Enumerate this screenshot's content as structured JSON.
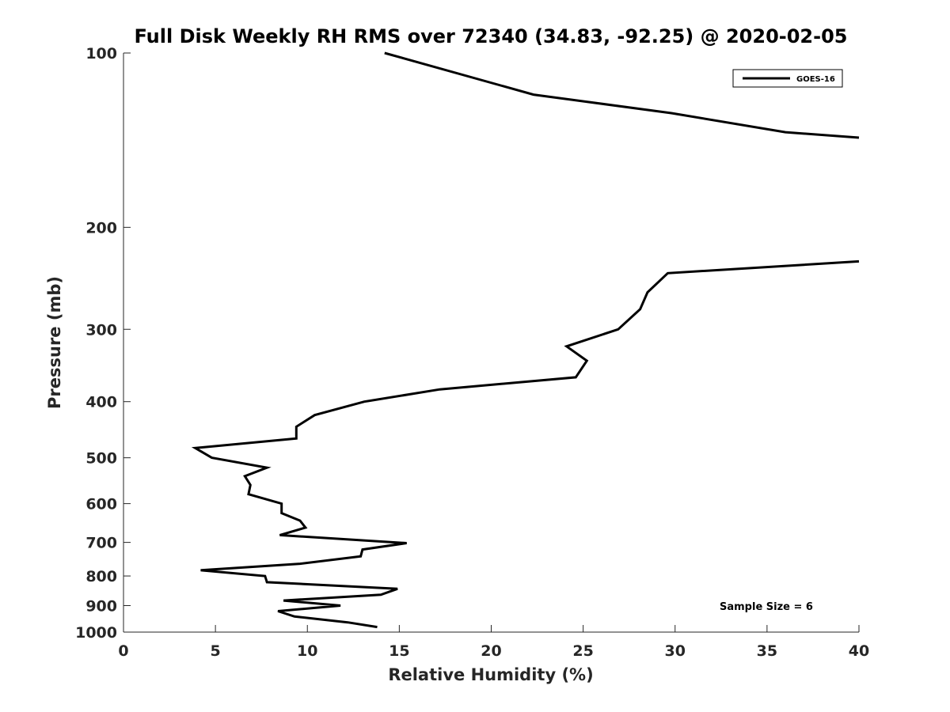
{
  "chart_data": {
    "type": "line",
    "title": "Full Disk Weekly RH RMS over 72340 (34.83, -92.25) @ 2020-02-05",
    "xlabel": "Relative Humidity (%)",
    "ylabel": "Pressure (mb)",
    "xlim": [
      0,
      40
    ],
    "ylim": [
      100,
      1000
    ],
    "yscale": "log",
    "yreversed": true,
    "grid": false,
    "legend_position": "top-right",
    "xticks": [
      "0",
      "5",
      "10",
      "15",
      "20",
      "25",
      "30",
      "35",
      "40"
    ],
    "yticks": [
      "100",
      "200",
      "300",
      "400",
      "500",
      "600",
      "700",
      "800",
      "900",
      "1000"
    ],
    "annotation": "Sample Size = 6",
    "line_color": "#000000",
    "series": [
      {
        "name": "GOES-16",
        "segments": [
          [
            {
              "x": 14.2,
              "y": 100
            },
            {
              "x": 22.3,
              "y": 118
            },
            {
              "x": 29.8,
              "y": 127
            },
            {
              "x": 36.0,
              "y": 137
            },
            {
              "x": 40.0,
              "y": 140
            }
          ],
          [
            {
              "x": 40.0,
              "y": 229
            },
            {
              "x": 29.6,
              "y": 240
            },
            {
              "x": 28.5,
              "y": 259
            },
            {
              "x": 28.1,
              "y": 277
            },
            {
              "x": 26.9,
              "y": 300
            },
            {
              "x": 24.1,
              "y": 321
            },
            {
              "x": 25.2,
              "y": 340
            },
            {
              "x": 24.6,
              "y": 363
            },
            {
              "x": 17.2,
              "y": 381
            },
            {
              "x": 13.1,
              "y": 400
            },
            {
              "x": 10.4,
              "y": 422
            },
            {
              "x": 9.4,
              "y": 442
            },
            {
              "x": 9.4,
              "y": 463
            },
            {
              "x": 3.9,
              "y": 481
            },
            {
              "x": 4.8,
              "y": 500
            },
            {
              "x": 7.8,
              "y": 520
            },
            {
              "x": 6.6,
              "y": 538
            },
            {
              "x": 6.9,
              "y": 557
            },
            {
              "x": 6.8,
              "y": 578
            },
            {
              "x": 8.6,
              "y": 600
            },
            {
              "x": 8.6,
              "y": 623
            },
            {
              "x": 9.6,
              "y": 642
            },
            {
              "x": 9.9,
              "y": 660
            },
            {
              "x": 8.5,
              "y": 680
            },
            {
              "x": 15.4,
              "y": 702
            },
            {
              "x": 13.0,
              "y": 720
            },
            {
              "x": 12.9,
              "y": 740
            },
            {
              "x": 9.6,
              "y": 762
            },
            {
              "x": 4.2,
              "y": 782
            },
            {
              "x": 7.7,
              "y": 800
            },
            {
              "x": 7.8,
              "y": 820
            },
            {
              "x": 14.9,
              "y": 842
            },
            {
              "x": 14.0,
              "y": 862
            },
            {
              "x": 8.7,
              "y": 882
            },
            {
              "x": 11.8,
              "y": 900
            },
            {
              "x": 8.4,
              "y": 920
            },
            {
              "x": 9.3,
              "y": 940
            },
            {
              "x": 12.2,
              "y": 962
            },
            {
              "x": 13.8,
              "y": 980
            }
          ]
        ]
      }
    ]
  }
}
